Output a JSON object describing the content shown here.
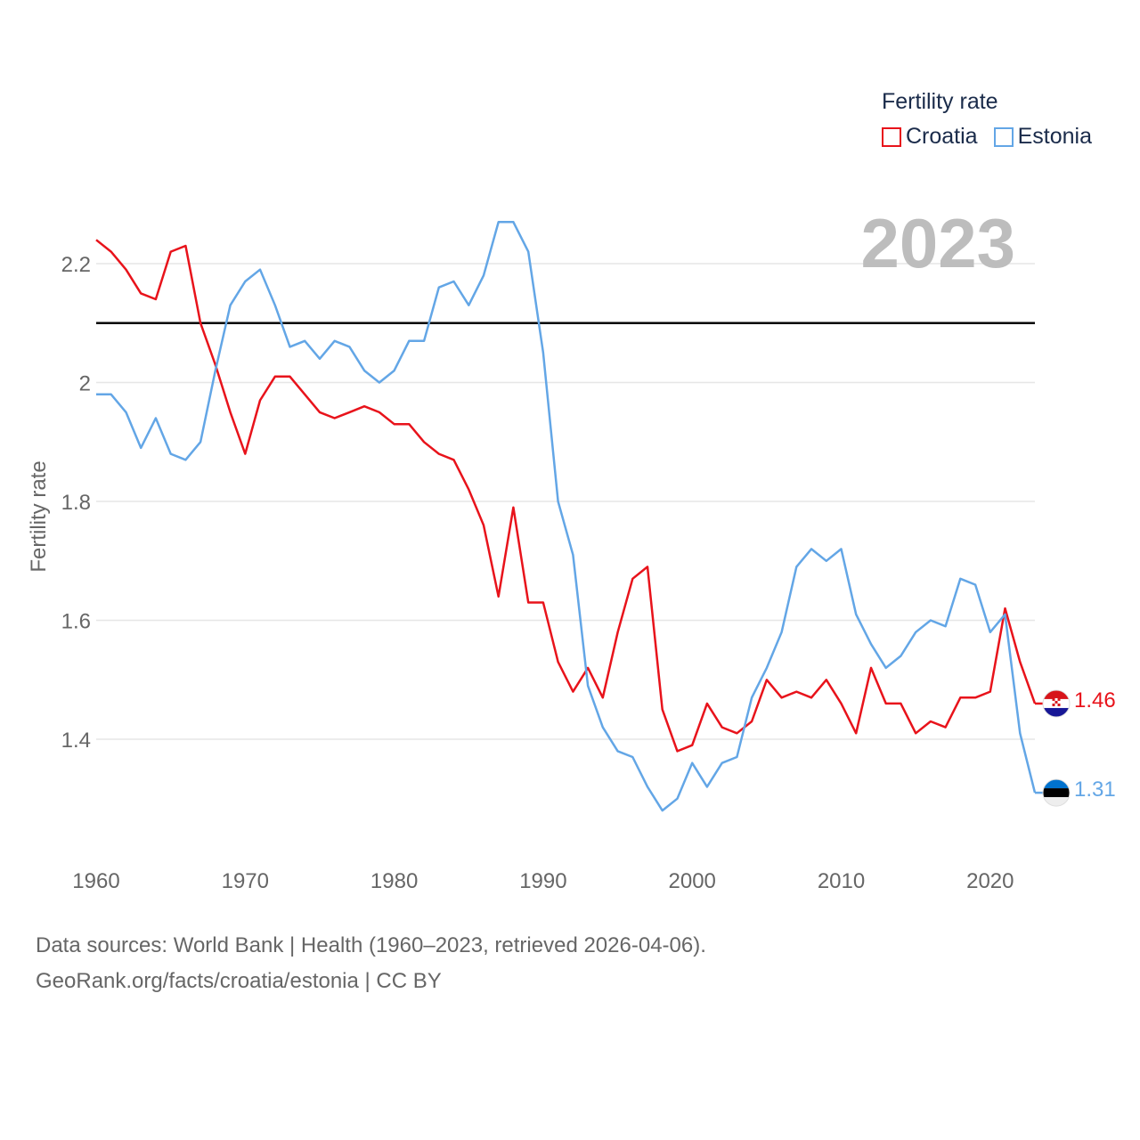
{
  "legend": {
    "title": "Fertility rate",
    "items": [
      {
        "label": "Croatia",
        "color": "#e8131b"
      },
      {
        "label": "Estonia",
        "color": "#63a6e6"
      }
    ]
  },
  "current_year": "2023",
  "footer": {
    "line1": "Data sources: World Bank | Health (1960–2023, retrieved 2026-04-06).",
    "line2": "GeoRank.org/facts/croatia/estonia | CC BY"
  },
  "end_labels": {
    "croatia": "1.46",
    "estonia": "1.31"
  },
  "chart_data": {
    "type": "line",
    "title": "",
    "xlabel": "",
    "ylabel": "Fertility rate",
    "xlim": [
      1960,
      2023
    ],
    "ylim": [
      1.25,
      2.28
    ],
    "x_ticks": [
      "1960",
      "1970",
      "1980",
      "1990",
      "2000",
      "2010",
      "2020"
    ],
    "y_ticks": [
      "1.4",
      "1.6",
      "1.8",
      "2",
      "2.2"
    ],
    "reference_line": 2.1,
    "x": [
      1960,
      1961,
      1962,
      1963,
      1964,
      1965,
      1966,
      1967,
      1968,
      1969,
      1970,
      1971,
      1972,
      1973,
      1974,
      1975,
      1976,
      1977,
      1978,
      1979,
      1980,
      1981,
      1982,
      1983,
      1984,
      1985,
      1986,
      1987,
      1988,
      1989,
      1990,
      1991,
      1992,
      1993,
      1994,
      1995,
      1996,
      1997,
      1998,
      1999,
      2000,
      2001,
      2002,
      2003,
      2004,
      2005,
      2006,
      2007,
      2008,
      2009,
      2010,
      2011,
      2012,
      2013,
      2014,
      2015,
      2016,
      2017,
      2018,
      2019,
      2020,
      2021,
      2022,
      2023
    ],
    "series": [
      {
        "name": "Croatia",
        "color": "#e8131b",
        "values": [
          2.24,
          2.22,
          2.19,
          2.15,
          2.14,
          2.22,
          2.23,
          2.1,
          2.03,
          1.95,
          1.88,
          1.97,
          2.01,
          2.01,
          1.98,
          1.95,
          1.94,
          1.95,
          1.96,
          1.95,
          1.93,
          1.93,
          1.9,
          1.88,
          1.87,
          1.82,
          1.76,
          1.64,
          1.79,
          1.63,
          1.63,
          1.53,
          1.48,
          1.52,
          1.47,
          1.58,
          1.67,
          1.69,
          1.45,
          1.38,
          1.39,
          1.46,
          1.42,
          1.41,
          1.43,
          1.5,
          1.47,
          1.48,
          1.47,
          1.5,
          1.46,
          1.41,
          1.52,
          1.46,
          1.46,
          1.41,
          1.43,
          1.42,
          1.47,
          1.47,
          1.48,
          1.62,
          1.53,
          1.46
        ]
      },
      {
        "name": "Estonia",
        "color": "#63a6e6",
        "values": [
          1.98,
          1.98,
          1.95,
          1.89,
          1.94,
          1.88,
          1.87,
          1.9,
          2.02,
          2.13,
          2.17,
          2.19,
          2.13,
          2.06,
          2.07,
          2.04,
          2.07,
          2.06,
          2.02,
          2.0,
          2.02,
          2.07,
          2.07,
          2.16,
          2.17,
          2.13,
          2.18,
          2.27,
          2.27,
          2.22,
          2.05,
          1.8,
          1.71,
          1.49,
          1.42,
          1.38,
          1.37,
          1.32,
          1.28,
          1.3,
          1.36,
          1.32,
          1.36,
          1.37,
          1.47,
          1.52,
          1.58,
          1.69,
          1.72,
          1.7,
          1.72,
          1.61,
          1.56,
          1.52,
          1.54,
          1.58,
          1.6,
          1.59,
          1.67,
          1.66,
          1.58,
          1.61,
          1.41,
          1.31
        ]
      }
    ]
  }
}
